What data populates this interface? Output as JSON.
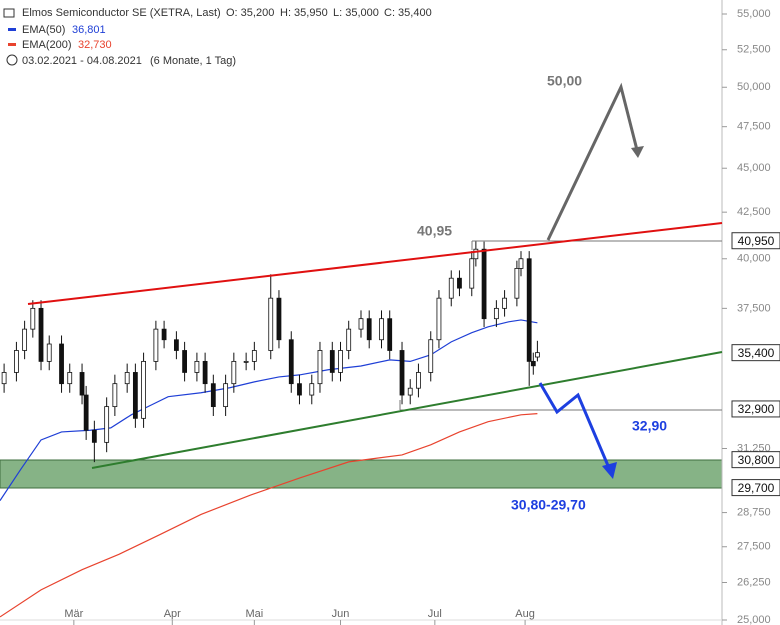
{
  "header": {
    "title": "Elmos Semiconductor SE (XETRA, Last)",
    "ohlc": [
      "O: 35,200",
      "H: 35,950",
      "L: 35,000",
      "C: 35,400"
    ],
    "range": "03.02.2021 - 04.08.2021",
    "range_note": "(6 Monate, 1 Tag)"
  },
  "chart_data": {
    "type": "candlestick",
    "x": [
      0,
      3,
      5,
      7,
      9,
      11,
      14,
      16,
      19,
      20,
      22,
      25,
      27,
      30,
      32,
      34,
      37,
      39,
      42,
      44,
      47,
      49,
      51,
      54,
      56,
      59,
      61,
      65,
      67,
      70,
      72,
      75,
      77,
      80,
      82,
      84,
      87,
      89,
      92,
      94,
      97,
      99,
      101,
      104,
      106,
      109,
      111,
      114,
      115,
      117,
      120,
      122,
      125,
      126,
      128,
      129,
      130
    ],
    "open": [
      34000,
      34500,
      35500,
      36500,
      37500,
      35000,
      35800,
      34000,
      34500,
      33500,
      32000,
      31500,
      33000,
      34000,
      34500,
      32500,
      35000,
      36500,
      36000,
      35500,
      34500,
      35000,
      34000,
      33000,
      34000,
      35000,
      35000,
      35500,
      38000,
      36000,
      34000,
      33500,
      34000,
      35500,
      34500,
      35500,
      36500,
      37000,
      36000,
      37000,
      35500,
      33500,
      33800,
      34500,
      36000,
      38000,
      39000,
      38500,
      40000,
      40500,
      37000,
      37500,
      38000,
      39500,
      40000,
      35000,
      35200
    ],
    "high": [
      34900,
      35900,
      36900,
      37900,
      37900,
      36200,
      36200,
      34900,
      34900,
      33900,
      32400,
      33400,
      34400,
      34900,
      34900,
      35400,
      36900,
      36900,
      36400,
      35900,
      35400,
      35400,
      34400,
      34400,
      35400,
      35400,
      35900,
      39200,
      38400,
      36400,
      34400,
      34400,
      35900,
      35900,
      35900,
      36900,
      37400,
      37400,
      37400,
      37400,
      35900,
      34200,
      34900,
      36400,
      38400,
      39400,
      39400,
      40400,
      40950,
      40900,
      37900,
      38400,
      39900,
      40400,
      40400,
      35400,
      35950
    ],
    "low": [
      33600,
      34100,
      35100,
      36100,
      34600,
      34600,
      33600,
      33600,
      33100,
      31600,
      30700,
      31100,
      32600,
      33600,
      32100,
      32100,
      34600,
      35600,
      35100,
      34100,
      34100,
      33600,
      32600,
      32600,
      33600,
      34600,
      34600,
      35100,
      35600,
      33600,
      33100,
      33100,
      33600,
      34100,
      34100,
      35100,
      36100,
      35600,
      35600,
      35100,
      33100,
      33100,
      33400,
      34100,
      35600,
      37600,
      38100,
      38100,
      39600,
      36600,
      36600,
      37100,
      37600,
      39100,
      33900,
      34400,
      35000
    ],
    "close": [
      34500,
      35500,
      36500,
      37500,
      35000,
      35800,
      34000,
      34500,
      33500,
      32000,
      31500,
      33000,
      34000,
      34500,
      32500,
      35000,
      36500,
      36000,
      35500,
      34500,
      35000,
      34000,
      33000,
      34000,
      35000,
      35000,
      35500,
      38000,
      36000,
      34000,
      33500,
      34000,
      35500,
      34500,
      35500,
      36500,
      37000,
      36000,
      37000,
      35500,
      33500,
      33800,
      34500,
      36000,
      38000,
      39000,
      38500,
      40000,
      40500,
      37000,
      37500,
      38000,
      39500,
      40000,
      35000,
      34800,
      35400
    ],
    "series": [
      {
        "name": "EMA(50)",
        "last_label": "36,801",
        "color": "#1f3fd6",
        "x": [
          -1,
          4,
          9,
          14,
          21,
          26,
          31,
          36,
          40,
          48,
          55,
          61,
          67,
          72,
          79,
          87,
          94,
          99,
          104,
          109,
          114,
          118,
          123,
          126,
          130
        ],
        "values": [
          29200,
          30400,
          31600,
          31930,
          32000,
          32100,
          32650,
          33080,
          33430,
          33600,
          33820,
          34080,
          34300,
          34390,
          34620,
          34790,
          35070,
          35000,
          35300,
          35900,
          36330,
          36610,
          36850,
          36940,
          36800
        ]
      },
      {
        "name": "EMA(200)",
        "last_label": "32,730",
        "color": "#e8432e",
        "x": [
          -1,
          9,
          19,
          28,
          38,
          48,
          60,
          72,
          84,
          97,
          104,
          111,
          118,
          126,
          130
        ],
        "values": [
          25100,
          26000,
          26690,
          27230,
          27940,
          28680,
          29410,
          30070,
          30710,
          30990,
          31400,
          31930,
          32360,
          32650,
          32700
        ]
      }
    ],
    "up_color": "#ffffff",
    "down_color": "#111111",
    "xlim": [
      -1,
      175
    ],
    "xticks": [
      {
        "value": 17,
        "label": "Mär"
      },
      {
        "value": 41,
        "label": "Apr"
      },
      {
        "value": 61,
        "label": "Mai"
      },
      {
        "value": 82,
        "label": "Jun"
      },
      {
        "value": 105,
        "label": "Jul"
      },
      {
        "value": 127,
        "label": "Aug"
      }
    ],
    "ylim": [
      25000,
      55000
    ],
    "log_scale": true,
    "yticks": [
      {
        "value": 55000,
        "label": "55,000"
      },
      {
        "value": 52500,
        "label": "52,500"
      },
      {
        "value": 50000,
        "label": "50,000"
      },
      {
        "value": 47500,
        "label": "47,500"
      },
      {
        "value": 45000,
        "label": "45,000"
      },
      {
        "value": 42500,
        "label": "42,500"
      },
      {
        "value": 40000,
        "label": "40,000"
      },
      {
        "value": 37500,
        "label": "37,500"
      },
      {
        "value": 31250,
        "label": "31,250"
      },
      {
        "value": 28750,
        "label": "28,750"
      },
      {
        "value": 27500,
        "label": "27,500"
      },
      {
        "value": 26250,
        "label": "26,250"
      },
      {
        "value": 25000,
        "label": "25,000"
      }
    ],
    "price_labels": [
      {
        "value": 40950,
        "label": "40,950"
      },
      {
        "value": 35400,
        "label": "35,400"
      },
      {
        "value": 32900,
        "label": "32,900"
      },
      {
        "value": 30800,
        "label": "30,800"
      },
      {
        "value": 29700,
        "label": "29,700"
      }
    ],
    "annotations": [
      "50,00",
      "40,95",
      "32,90",
      "30,80-29,70"
    ]
  }
}
